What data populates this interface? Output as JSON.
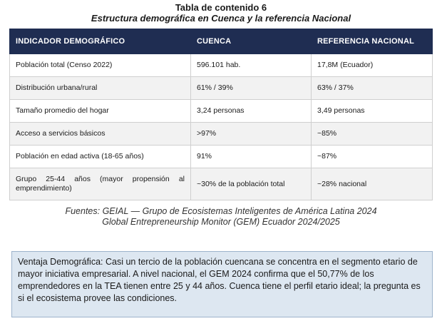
{
  "caption": {
    "title": "Tabla de contenido 6",
    "subtitle": "Estructura demográfica en Cuenca y la referencia Nacional"
  },
  "table": {
    "headers": [
      "INDICADOR DEMOGRÁFICO",
      "CUENCA",
      "REFERENCIA NACIONAL"
    ],
    "rows": [
      [
        "Población total (Censo 2022)",
        "596.101 hab.",
        "17,8M (Ecuador)"
      ],
      [
        "Distribución urbana/rural",
        "61% / 39%",
        "63% / 37%"
      ],
      [
        "Tamaño promedio del hogar",
        "3,24 personas",
        "3,49 personas"
      ],
      [
        "Acceso a servicios básicos",
        ">97%",
        "~85%"
      ],
      [
        "Población en edad activa (18-65 años)",
        "91%",
        "~87%"
      ],
      [
        "Grupo 25-44 años (mayor propensión al emprendimiento)",
        "~30% de la población total",
        "~28% nacional"
      ]
    ]
  },
  "sources": {
    "line1": "Fuentes: GEIAL — Grupo de Ecosistemas Inteligentes de América Latina 2024",
    "line2": "Global Entrepreneurship Monitor (GEM) Ecuador 2024/2025"
  },
  "callout": {
    "text": "Ventaja Demográfica: Casi un tercio de la población cuencana se concentra en el segmento etario de mayor iniciativa empresarial. A nivel nacional, el GEM 2024 confirma que el 50,77% de los emprendedores en la TEA tienen entre 25 y 44 años. Cuenca tiene el perfil etario ideal; la pregunta es si el ecosistema provee las condiciones."
  }
}
